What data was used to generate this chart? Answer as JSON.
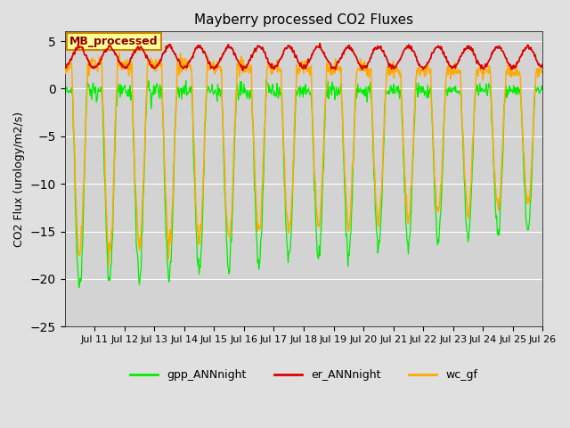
{
  "title": "Mayberry processed CO2 Fluxes",
  "ylabel": "CO2 Flux (urology/m2/s)",
  "ylim": [
    -25,
    6
  ],
  "yticks": [
    -25,
    -20,
    -15,
    -10,
    -5,
    0,
    5
  ],
  "background_color": "#e0e0e0",
  "plot_bg_color": "#d3d3d3",
  "grid_color": "#ffffff",
  "colors": {
    "gpp": "#00ee00",
    "er": "#dd0000",
    "wc": "#ffaa00"
  },
  "legend_labels": [
    "gpp_ANNnight",
    "er_ANNnight",
    "wc_gf"
  ],
  "annotation_text": "MB_processed",
  "annotation_bg": "#ffff99",
  "annotation_border": "#cc8800",
  "annotation_text_color": "#880000",
  "num_days": 16,
  "n_points_per_day": 48,
  "er_base": 3.3,
  "er_amp": 1.1,
  "gpp_peak": -21.0,
  "wc_peak": -17.5,
  "wc_night": 2.5,
  "figsize": [
    6.4,
    4.8
  ],
  "dpi": 100
}
